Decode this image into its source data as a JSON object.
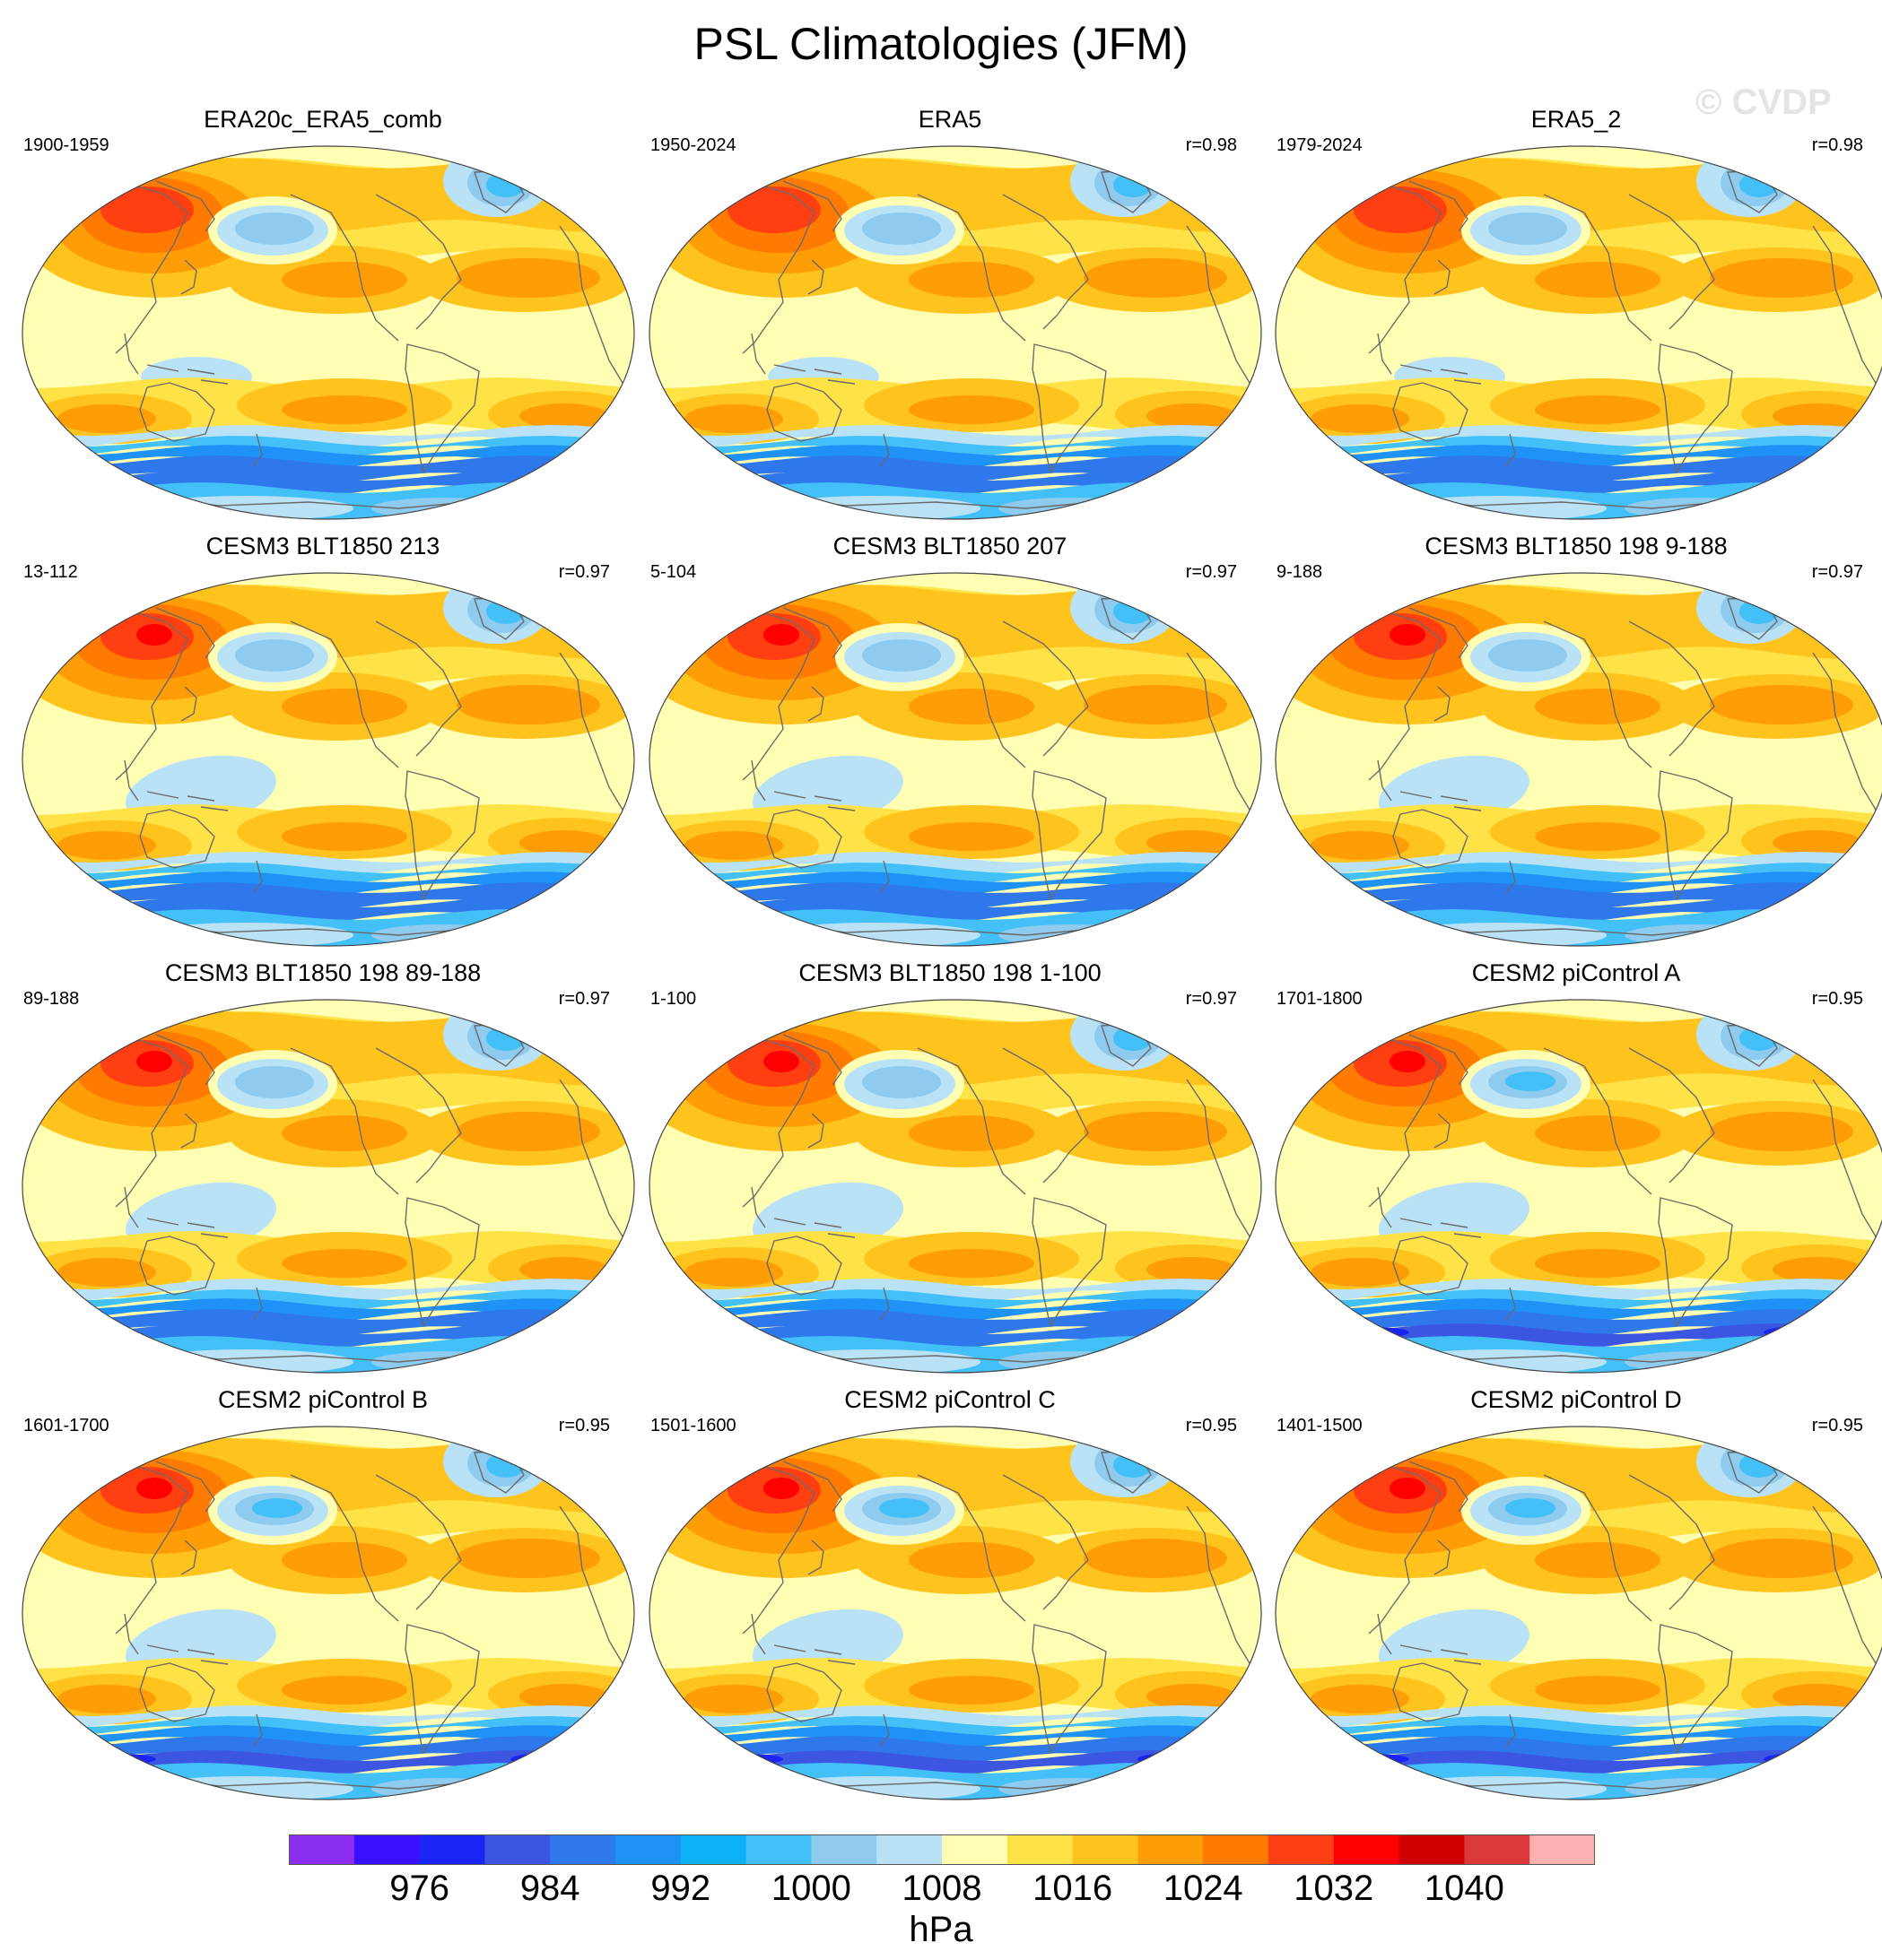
{
  "title": "PSL Climatologies (JFM)",
  "watermark": "© CVDP",
  "panels": [
    {
      "name": "ERA20c_ERA5_comb",
      "years": "1900-1959",
      "corr": "",
      "profile": "obs"
    },
    {
      "name": "ERA5",
      "years": "1950-2024",
      "corr": "r=0.98",
      "profile": "obs"
    },
    {
      "name": "ERA5_2",
      "years": "1979-2024",
      "corr": "r=0.98",
      "profile": "obs"
    },
    {
      "name": "CESM3 BLT1850 213",
      "years": "13-112",
      "corr": "r=0.97",
      "profile": "cesm3"
    },
    {
      "name": "CESM3 BLT1850 207",
      "years": "5-104",
      "corr": "r=0.97",
      "profile": "cesm3"
    },
    {
      "name": "CESM3 BLT1850 198 9-188",
      "years": "9-188",
      "corr": "r=0.97",
      "profile": "cesm3"
    },
    {
      "name": "CESM3 BLT1850 198 89-188",
      "years": "89-188",
      "corr": "r=0.97",
      "profile": "cesm3"
    },
    {
      "name": "CESM3 BLT1850 198 1-100",
      "years": "1-100",
      "corr": "r=0.97",
      "profile": "cesm3"
    },
    {
      "name": "CESM2 piControl A",
      "years": "1701-1800",
      "corr": "r=0.95",
      "profile": "cesm2"
    },
    {
      "name": "CESM2 piControl B",
      "years": "1601-1700",
      "corr": "r=0.95",
      "profile": "cesm2"
    },
    {
      "name": "CESM2 piControl C",
      "years": "1501-1600",
      "corr": "r=0.95",
      "profile": "cesm2"
    },
    {
      "name": "CESM2 piControl D",
      "years": "1401-1500",
      "corr": "r=0.95",
      "profile": "cesm2"
    }
  ],
  "colorbar": {
    "colors": [
      "#8a2ef0",
      "#3a10ff",
      "#1a24f5",
      "#3c56e2",
      "#2f78ec",
      "#1f92f8",
      "#0cb1f8",
      "#42c0f7",
      "#8fcbee",
      "#b9e2f7",
      "#ffffb4",
      "#ffe245",
      "#ffc31e",
      "#ff9d07",
      "#ff7a00",
      "#ff3f12",
      "#ff0000",
      "#d10000",
      "#db3939",
      "#ffb0b0"
    ],
    "ticks": [
      {
        "index": 2,
        "label": "976"
      },
      {
        "index": 4,
        "label": "984"
      },
      {
        "index": 6,
        "label": "992"
      },
      {
        "index": 8,
        "label": "1000"
      },
      {
        "index": 10,
        "label": "1008"
      },
      {
        "index": 12,
        "label": "1016"
      },
      {
        "index": 14,
        "label": "1024"
      },
      {
        "index": 16,
        "label": "1032"
      },
      {
        "index": 18,
        "label": "1040"
      }
    ],
    "units": "hPa"
  }
}
